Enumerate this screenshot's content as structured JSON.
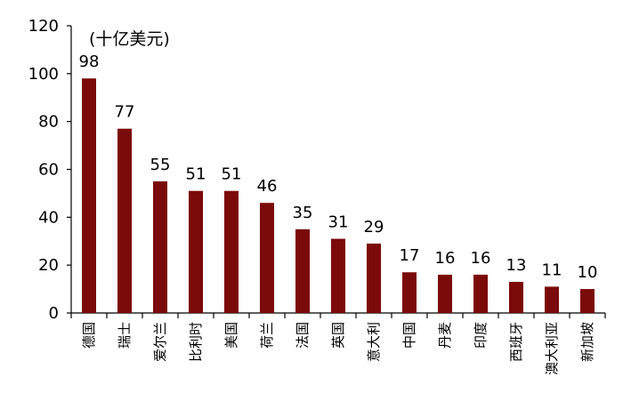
{
  "chart_data": {
    "type": "bar",
    "unit": "(十亿美元)",
    "categories": [
      "德国",
      "瑞士",
      "爱尔兰",
      "比利时",
      "美国",
      "荷兰",
      "法国",
      "英国",
      "意大利",
      "中国",
      "丹麦",
      "印度",
      "西班牙",
      "澳大利亚",
      "新加坡"
    ],
    "values": [
      98,
      77,
      55,
      51,
      51,
      46,
      35,
      31,
      29,
      17,
      16,
      16,
      13,
      11,
      10
    ],
    "ylim": [
      0,
      120
    ],
    "yticks": [
      0,
      20,
      40,
      60,
      80,
      100,
      120
    ],
    "grid": false,
    "legend": "none",
    "bar_color": "#7b0a0a"
  }
}
